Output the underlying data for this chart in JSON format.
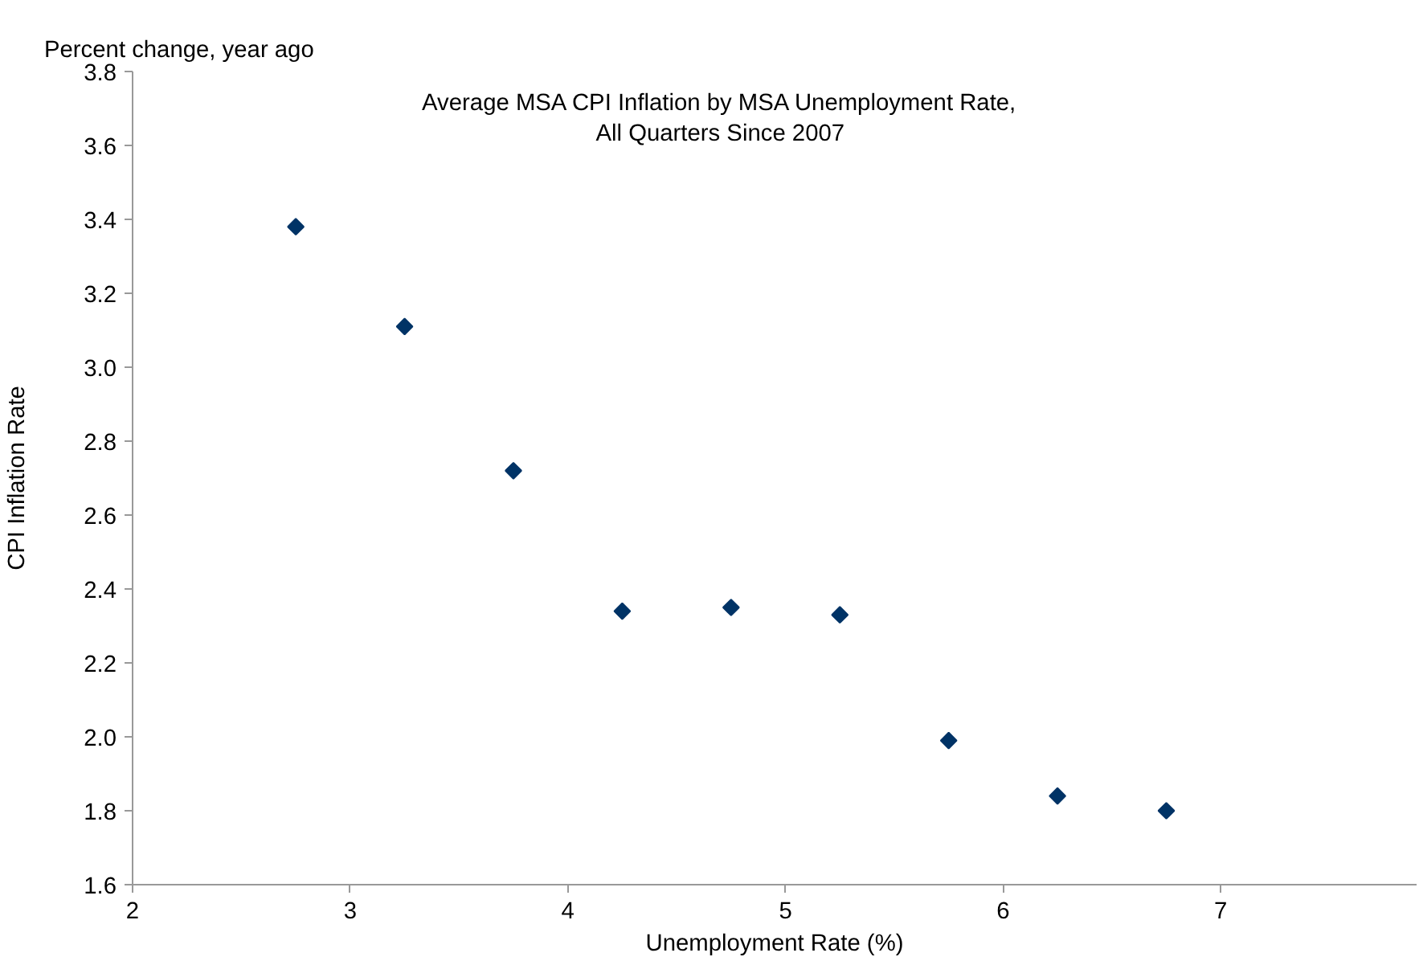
{
  "chart_data": {
    "type": "scatter",
    "title": "Average MSA CPI Inflation by MSA Unemployment Rate,\nAll Quarters Since 2007",
    "xlabel": "Unemployment Rate (%)",
    "ylabel": "CPI Inflation Rate",
    "annotations": [
      "Percent change, year ago"
    ],
    "x": [
      2.75,
      3.25,
      3.75,
      4.25,
      4.75,
      5.25,
      5.75,
      6.25,
      6.75
    ],
    "series": [
      {
        "color": "#003366",
        "values": [
          3.38,
          3.11,
          2.72,
          2.34,
          2.35,
          2.33,
          1.99,
          1.84,
          1.8
        ]
      }
    ],
    "xlim": [
      2,
      7.9
    ],
    "xticks": [
      2,
      3,
      4,
      5,
      6,
      7
    ],
    "ylim": [
      1.6,
      3.8
    ],
    "yticks": [
      1.6,
      1.8,
      {
        "value": 2.0,
        "label": "2.0"
      },
      2.2,
      2.4,
      2.6,
      2.8,
      {
        "value": 3.0,
        "label": "3.0"
      },
      3.2,
      3.4,
      3.6,
      3.8
    ],
    "marker": "diamond",
    "grid": false
  }
}
